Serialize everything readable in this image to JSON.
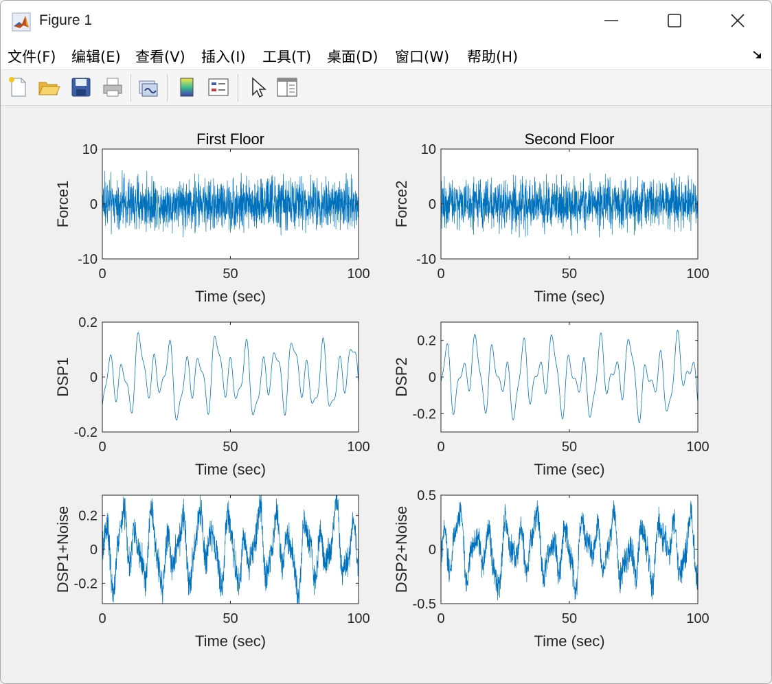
{
  "window": {
    "title": "Figure 1",
    "app_icon": "matlab-logo-icon",
    "controls": [
      "minimize-icon",
      "maximize-icon",
      "close-icon"
    ]
  },
  "menubar": {
    "items": [
      {
        "label": "文件(F)",
        "name": "file"
      },
      {
        "label": "编辑(E)",
        "name": "edit"
      },
      {
        "label": "查看(V)",
        "name": "view"
      },
      {
        "label": "插入(I)",
        "name": "insert"
      },
      {
        "label": "工具(T)",
        "name": "tools"
      },
      {
        "label": "桌面(D)",
        "name": "desktop"
      },
      {
        "label": "窗口(W)",
        "name": "window"
      },
      {
        "label": "帮助(H)",
        "name": "help"
      }
    ],
    "dock_icon": "dock-arrow-icon"
  },
  "toolbar": {
    "buttons": [
      "new-figure-icon",
      "open-file-icon",
      "save-icon",
      "print-icon",
      "link-plot-icon",
      "colorbar-icon",
      "legend-icon",
      "edit-plot-cursor-icon",
      "property-inspector-icon"
    ]
  },
  "colors": {
    "series": "#0072bd",
    "axes": "#262626",
    "figure_bg": "#f0f0f0"
  },
  "chart_data": [
    {
      "type": "line",
      "title": "First Floor",
      "xlabel": "Time (sec)",
      "ylabel": "Force1",
      "xlim": [
        0,
        100
      ],
      "ylim": [
        -10,
        10
      ],
      "xticks": [
        0,
        50,
        100
      ],
      "yticks": [
        -10,
        0,
        10
      ],
      "signal": {
        "kind": "white-noise",
        "amplitude": 5
      }
    },
    {
      "type": "line",
      "title": "Second Floor",
      "xlabel": "Time (sec)",
      "ylabel": "Force2",
      "xlim": [
        0,
        100
      ],
      "ylim": [
        -10,
        10
      ],
      "xticks": [
        0,
        50,
        100
      ],
      "yticks": [
        -10,
        0,
        10
      ],
      "signal": {
        "kind": "white-noise",
        "amplitude": 5
      }
    },
    {
      "type": "line",
      "title": "",
      "xlabel": "Time (sec)",
      "ylabel": "DSP1",
      "xlim": [
        0,
        100
      ],
      "ylim": [
        -0.2,
        0.2
      ],
      "xticks": [
        0,
        50,
        100
      ],
      "yticks": [
        -0.2,
        0,
        0.2
      ],
      "signal": {
        "kind": "oscillation",
        "amplitude": 0.2
      }
    },
    {
      "type": "line",
      "title": "",
      "xlabel": "Time (sec)",
      "ylabel": "DSP2",
      "xlim": [
        0,
        100
      ],
      "ylim": [
        -0.3,
        0.3
      ],
      "xticks": [
        0,
        50,
        100
      ],
      "yticks": [
        -0.2,
        0,
        0.2
      ],
      "signal": {
        "kind": "oscillation",
        "amplitude": 0.3
      }
    },
    {
      "type": "line",
      "title": "",
      "xlabel": "Time (sec)",
      "ylabel": "DSP1+Noise",
      "xlim": [
        0,
        100
      ],
      "ylim": [
        -0.32,
        0.32
      ],
      "xticks": [
        0,
        50,
        100
      ],
      "yticks": [
        -0.2,
        0,
        0.2
      ],
      "signal": {
        "kind": "oscillation+noise",
        "amplitude": 0.32
      }
    },
    {
      "type": "line",
      "title": "",
      "xlabel": "Time (sec)",
      "ylabel": "DSP2+Noise",
      "xlim": [
        0,
        100
      ],
      "ylim": [
        -0.5,
        0.5
      ],
      "xticks": [
        0,
        50,
        100
      ],
      "yticks": [
        -0.5,
        0,
        0.5
      ],
      "signal": {
        "kind": "oscillation+noise",
        "amplitude": 0.45
      }
    }
  ]
}
